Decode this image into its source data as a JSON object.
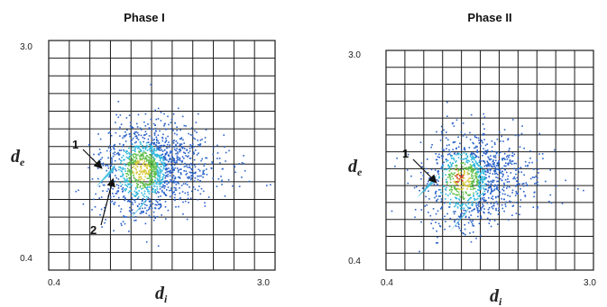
{
  "chart_data": [
    {
      "type": "heatmap",
      "title": "Phase I",
      "xlabel": "d",
      "xlabel_sub": "i",
      "ylabel": "d",
      "ylabel_sub": "e",
      "xlim": [
        0.4,
        3.0
      ],
      "ylim": [
        0.4,
        3.0
      ],
      "x_ticks": [
        "0.4",
        "3.0"
      ],
      "y_ticks": [
        "3.0",
        "0.4"
      ],
      "grid": true,
      "annotations": [
        "1",
        "2"
      ]
    },
    {
      "type": "heatmap",
      "title": "Phase II",
      "xlabel": "d",
      "xlabel_sub": "i",
      "ylabel": "d",
      "ylabel_sub": "e",
      "xlim": [
        0.4,
        3.0
      ],
      "ylim": [
        0.4,
        3.0
      ],
      "x_ticks": [
        "0.4",
        "3.0"
      ],
      "y_ticks": [
        "3.0",
        "0.4"
      ],
      "grid": true,
      "annotations": [
        "1"
      ]
    }
  ],
  "colors": {
    "grid": "#1a1a1a",
    "scatter_blue": "#2a62c9",
    "scatter_cyan": "#31b7dc",
    "scatter_green": "#5fbe4a",
    "scatter_yellow": "#d8c93a",
    "scatter_red": "#d0402c"
  }
}
